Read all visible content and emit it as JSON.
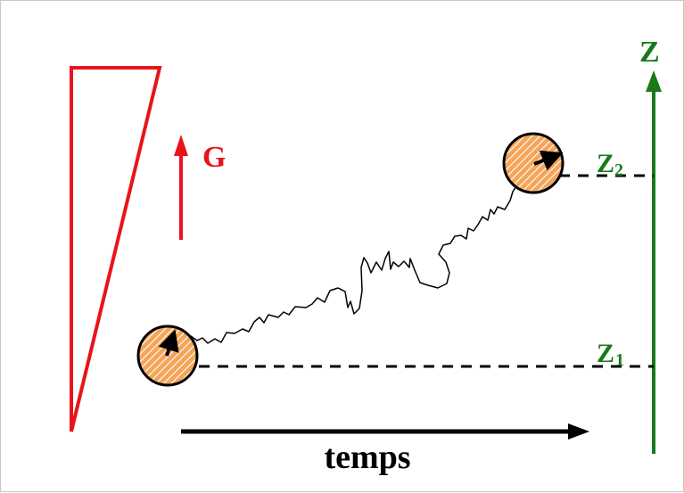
{
  "labels": {
    "gradient": "G",
    "axis": "Z",
    "z2_main": "Z",
    "z2_sub": "2",
    "z1_main": "Z",
    "z1_sub": "1",
    "time": "temps"
  },
  "colors": {
    "gradient": "#e8141b",
    "axis": "#1a7a1a",
    "particle_fill": "#f5a55a",
    "particle_hatch": "#ffffff",
    "path": "#000000",
    "time_arrow": "#000000"
  },
  "icons": {
    "gradient_wedge": "triangle-wedge",
    "particle": "hatched-circle",
    "spin": "spin-arrow-icon"
  }
}
